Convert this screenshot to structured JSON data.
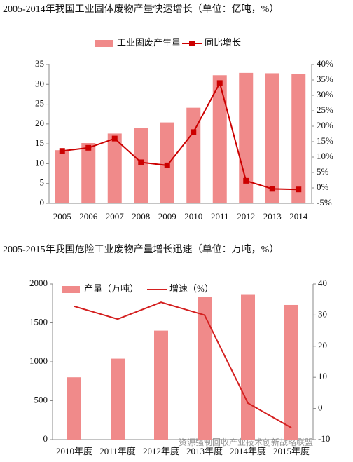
{
  "chart_data": [
    {
      "type": "combo",
      "title": "2005-2014年我国工业固体废物产量快速增长（单位：亿吨，%）",
      "categories": [
        "2005",
        "2006",
        "2007",
        "2008",
        "2009",
        "2010",
        "2011",
        "2012",
        "2013",
        "2014"
      ],
      "series": [
        {
          "name": "工业固废产生量",
          "type": "bar",
          "color": "#f08a8a",
          "values": [
            13.4,
            15.2,
            17.6,
            19.0,
            20.4,
            24.1,
            32.3,
            32.9,
            32.8,
            32.6
          ]
        },
        {
          "name": "同比增长",
          "type": "line",
          "axis": "y2",
          "color": "#cc0000",
          "marker": "square",
          "values": [
            12.0,
            13.0,
            16.0,
            8.3,
            7.3,
            18.1,
            34.0,
            2.3,
            -0.3,
            -0.5
          ]
        }
      ],
      "ylim": [
        0,
        35
      ],
      "yticks": [
        0,
        5,
        10,
        15,
        20,
        25,
        30,
        35
      ],
      "y2lim": [
        -5,
        40
      ],
      "y2ticks": [
        {
          "value": -5,
          "label": "-5%"
        },
        {
          "value": 0,
          "label": "0%"
        },
        {
          "value": 5,
          "label": "5%"
        },
        {
          "value": 10,
          "label": "10%"
        },
        {
          "value": 15,
          "label": "15%"
        },
        {
          "value": 20,
          "label": "20%"
        },
        {
          "value": 25,
          "label": "25%"
        },
        {
          "value": 30,
          "label": "30%"
        },
        {
          "value": 35,
          "label": "35%"
        },
        {
          "value": 40,
          "label": "40%"
        }
      ],
      "legend": "top",
      "grid": false
    },
    {
      "type": "combo",
      "title": "2005-2015年我国危险工业废物产量增长迅速（单位：万吨，%）",
      "categories": [
        "2010年度",
        "2011年度",
        "2012年度",
        "2013年度",
        "2014年度",
        "2015年度"
      ],
      "series": [
        {
          "name": "产量（万吨）",
          "type": "bar",
          "color": "#f08a8a",
          "values": [
            800,
            1040,
            1400,
            1830,
            1860,
            1730
          ]
        },
        {
          "name": "增速（%）",
          "type": "line",
          "axis": "y2",
          "color": "#d42020",
          "marker": "none",
          "values": [
            32.8,
            28.7,
            34.1,
            30.0,
            1.7,
            -6.2
          ]
        }
      ],
      "ylim": [
        0,
        2000
      ],
      "yticks": [
        0,
        500,
        1000,
        1500,
        2000
      ],
      "y2lim": [
        -10,
        40
      ],
      "y2ticks": [
        -10,
        0,
        10,
        20,
        30,
        40
      ],
      "legend": "upper left",
      "grid": false
    }
  ],
  "watermark": "资源强制回收产业技术创新战略联盟"
}
